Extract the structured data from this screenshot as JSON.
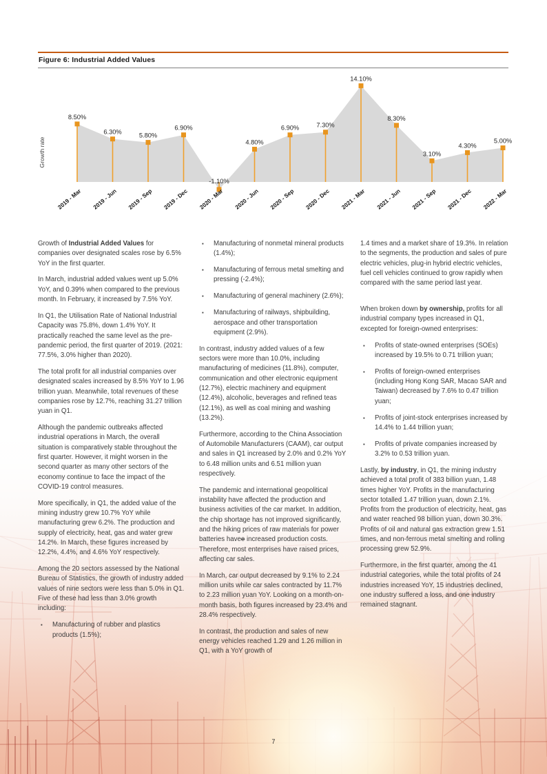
{
  "page": {
    "number": "7"
  },
  "figure": {
    "title": "Figure 6: Industrial Added Values"
  },
  "chart_data": {
    "type": "area",
    "title": "Figure 6: Industrial Added Values",
    "xlabel": "",
    "ylabel": "Growth rate",
    "categories": [
      "2019 - Mar",
      "2019 - Jun",
      "2019 - Sep",
      "2019 - Dec",
      "2020 - Mar",
      "2020 - Jun",
      "2020 - Sep",
      "2020 - Dec",
      "2021 - Mar",
      "2021 - Jun",
      "2021 - Sep",
      "2021 - Dec",
      "2022 - Mar"
    ],
    "values": [
      8.5,
      6.3,
      5.8,
      6.9,
      -1.1,
      4.8,
      6.9,
      7.3,
      14.1,
      8.3,
      3.1,
      4.3,
      5.0
    ],
    "point_labels": [
      "8.50%",
      "6.30%",
      "5.80%",
      "6.90%",
      "-1.10%",
      "4.80%",
      "6.90%",
      "7.30%",
      "14.10%",
      "8.30%",
      "3.10%",
      "4.30%",
      "5.00%"
    ],
    "ylim": [
      -2,
      15
    ],
    "grid": false,
    "legend": "none",
    "colors": {
      "marker": "#E8951F",
      "stem": "#F0A02C",
      "area": "#D9D9D9"
    }
  },
  "columns": [
    {
      "blocks": [
        {
          "type": "p",
          "segments": [
            {
              "t": "Growth of "
            },
            {
              "t": "Industrial Added Values",
              "b": true
            },
            {
              "t": " for companies over designated scales rose by 6.5% YoY in the first quarter."
            }
          ]
        },
        {
          "type": "p",
          "segments": [
            {
              "t": "In March, industrial added values went up 5.0% YoY, and 0.39% when compared to the previous month. In February, it increased by 7.5% YoY."
            }
          ]
        },
        {
          "type": "p",
          "segments": [
            {
              "t": "In Q1, the Utilisation Rate of National Industrial Capacity was 75.8%, down 1.4% YoY. It practically reached the same level as the pre-pandemic period, the first quarter of 2019. (2021: 77.5%, 3.0% higher than 2020)."
            }
          ]
        },
        {
          "type": "p",
          "segments": [
            {
              "t": "The total profit for all industrial companies over designated scales increased by 8.5% YoY to 1.96 trillion yuan. Meanwhile, total revenues of these companies rose by 12.7%, reaching 31.27 trillion yuan in Q1."
            }
          ]
        },
        {
          "type": "p",
          "segments": [
            {
              "t": "Although the pandemic outbreaks affected industrial operations in March, the overall situation is comparatively stable throughout the first quarter. However, it might worsen in the second quarter as many other sectors of the economy continue to face the impact of the COVID-19 control measures."
            }
          ]
        },
        {
          "type": "p",
          "segments": [
            {
              "t": "More specifically, in Q1, the added value of the mining industry grew 10.7% YoY while manufacturing grew 6.2%. The production and supply of electricity, heat, gas and water grew 14.2%. In March, these figures increased by 12.2%, 4.4%, and 4.6% YoY respectively."
            }
          ]
        },
        {
          "type": "p",
          "segments": [
            {
              "t": "Among the 20 sectors assessed by the National Bureau of Statistics, the growth of industry added values of nine sectors were less than 5.0% in Q1. Five of these had less than 3.0% growth including:"
            }
          ]
        },
        {
          "type": "bullet",
          "segments": [
            {
              "t": "Manufacturing of rubber and plastics products (1.5%);"
            }
          ]
        }
      ]
    },
    {
      "blocks": [
        {
          "type": "bullet",
          "segments": [
            {
              "t": "Manufacturing of nonmetal mineral products (1.4%);"
            }
          ]
        },
        {
          "type": "bullet",
          "segments": [
            {
              "t": "Manufacturing of ferrous metal smelting and pressing (-2.4%);"
            }
          ]
        },
        {
          "type": "bullet",
          "segments": [
            {
              "t": "Manufacturing of general machinery (2.6%);"
            }
          ]
        },
        {
          "type": "bullet",
          "segments": [
            {
              "t": "Manufacturing of railways, shipbuilding, aerospace and other transportation equipment (2.9%)."
            }
          ]
        },
        {
          "type": "p",
          "segments": [
            {
              "t": "In contrast, industry added values of a few sectors were more than 10.0%, including manufacturing of medicines (11.8%), computer, communication and other electronic equipment (12.7%), electric machinery and equipment (12.4%), alcoholic, beverages and refined teas (12.1%), as well as coal mining and washing (13.2%)."
            }
          ]
        },
        {
          "type": "p",
          "segments": [
            {
              "t": "Furthermore, according to the China Association of Automobile Manufacturers (CAAM), car output and sales in Q1 increased by 2.0% and 0.2% YoY to 6.48 million units and 6.51 million yuan respectively."
            }
          ]
        },
        {
          "type": "p",
          "segments": [
            {
              "t": "The pandemic and international geopolitical instability have affected the production and business activities of the car market. In addition, the chip shortage has not improved significantly, and the hiking prices of raw materials for power batteries have"
            },
            {
              "t": "e",
              "strike": true
            },
            {
              "t": " increased production costs. Therefore, most enterprises have raised prices, affecting car sales."
            }
          ]
        },
        {
          "type": "p",
          "segments": [
            {
              "t": "In March, car output decreased by 9.1% to 2.24 million units while car sales contracted by 11.7% to 2.23 million yuan YoY. Looking on a month-on-month basis, both figures increased by 23.4% and 28.4% respectively."
            }
          ]
        },
        {
          "type": "p",
          "segments": [
            {
              "t": "In contrast, the production and sales of new energy vehicles reached 1.29 and 1.26 million in Q1, with a YoY growth of"
            }
          ]
        }
      ]
    },
    {
      "blocks": [
        {
          "type": "p",
          "segments": [
            {
              "t": "1.4 times and a market share of 19.3%. In relation to the segments, the production and sales of pure electric vehicles, plug-in hybrid electric vehicles, fuel cell vehicles continued to grow rapidly when compared with the same period last year."
            }
          ]
        },
        {
          "type": "spacer"
        },
        {
          "type": "p",
          "segments": [
            {
              "t": "When broken down "
            },
            {
              "t": "by ownership,",
              "b": true
            },
            {
              "t": " profits for all industrial company types increased in Q1, excepted for foreign-owned enterprises:"
            }
          ]
        },
        {
          "type": "bullet",
          "segments": [
            {
              "t": "Profits of state-owned enterprises (SOEs) increased by 19.5% to 0.71 trillion yuan;"
            }
          ]
        },
        {
          "type": "bullet",
          "segments": [
            {
              "t": "Profits of foreign-owned enterprises (including Hong Kong SAR, Macao SAR and Taiwan) decreased by 7.6% to 0.47 trillion yuan;"
            }
          ]
        },
        {
          "type": "bullet",
          "segments": [
            {
              "t": "Profits of joint-stock enterprises increased by 14.4% to 1.44 trillion yuan;"
            }
          ]
        },
        {
          "type": "bullet",
          "segments": [
            {
              "t": "Profits of private companies increased by 3.2% to 0.53 trillion yuan."
            }
          ]
        },
        {
          "type": "p",
          "segments": [
            {
              "t": "Lastly, "
            },
            {
              "t": "by industry",
              "b": true
            },
            {
              "t": ", in Q1, the mining industry achieved a total profit of 383 billion yuan, 1.48 times higher YoY. Profits in the manufacturing sector totalled 1.47 trillion yuan, down 2.1%. Profits from the production of electricity, heat, gas and water reached 98 billion yuan, down 30.3%. Profits of oil and natural gas extraction grew 1.51 times, and non-ferrous metal smelting and rolling processing grew 52.9%."
            }
          ]
        },
        {
          "type": "p",
          "segments": [
            {
              "t": "Furthermore, in the first quarter, among the 41 industrial categories, while the total profits of 24 industries increased YoY, 15 industries declined, one industry suffered a loss, and one industry remained stagnant."
            }
          ]
        }
      ]
    }
  ]
}
